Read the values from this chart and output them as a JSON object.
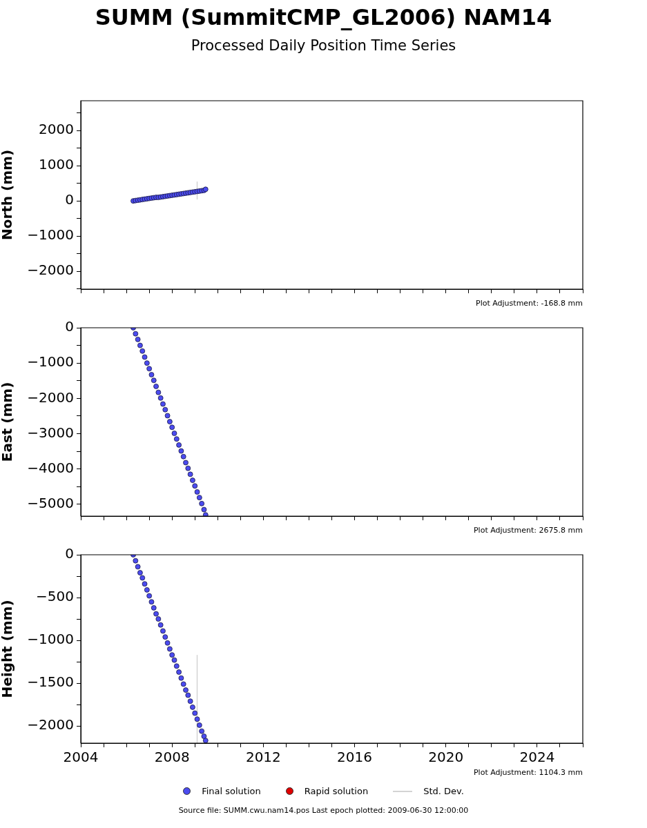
{
  "chart_data": [
    {
      "type": "scatter",
      "title": "SUMM (SummitCMP_GL2006) NAM14",
      "subtitle": "Processed Daily Position Time Series",
      "ylabel": "North (mm)",
      "xlim": [
        2004,
        2026
      ],
      "xticks": [
        {
          "value": 2004,
          "label": null
        },
        {
          "value": 2005,
          "label": null
        },
        {
          "value": 2006,
          "label": null
        },
        {
          "value": 2007,
          "label": null
        },
        {
          "value": 2008,
          "label": null
        },
        {
          "value": 2009,
          "label": null
        },
        {
          "value": 2010,
          "label": null
        },
        {
          "value": 2011,
          "label": null
        },
        {
          "value": 2012,
          "label": null
        },
        {
          "value": 2013,
          "label": null
        },
        {
          "value": 2014,
          "label": null
        },
        {
          "value": 2015,
          "label": null
        },
        {
          "value": 2016,
          "label": null
        },
        {
          "value": 2017,
          "label": null
        },
        {
          "value": 2018,
          "label": null
        },
        {
          "value": 2019,
          "label": null
        },
        {
          "value": 2020,
          "label": null
        },
        {
          "value": 2021,
          "label": null
        },
        {
          "value": 2022,
          "label": null
        },
        {
          "value": 2023,
          "label": null
        },
        {
          "value": 2024,
          "label": null
        },
        {
          "value": 2025,
          "label": null
        },
        {
          "value": 2026,
          "label": null
        }
      ],
      "ylim": [
        -2510,
        2850
      ],
      "yticks": [
        {
          "value": -2500,
          "label": null
        },
        {
          "value": -2000,
          "label": "−2000"
        },
        {
          "value": -1500,
          "label": null
        },
        {
          "value": -1000,
          "label": "−1000"
        },
        {
          "value": -500,
          "label": null
        },
        0,
        {
          "value": 500,
          "label": null
        },
        1000,
        {
          "value": 1500,
          "label": null
        },
        2000,
        {
          "value": 2500,
          "label": null
        }
      ],
      "tick_labels": "y",
      "marker": "circle",
      "x": [
        2006.3,
        2006.4,
        2006.5,
        2006.6,
        2006.7,
        2006.8,
        2006.9,
        2007.0,
        2007.1,
        2007.2,
        2007.3,
        2007.4,
        2007.5,
        2007.6,
        2007.7,
        2007.8,
        2007.9,
        2008.0,
        2008.1,
        2008.2,
        2008.3,
        2008.4,
        2008.5,
        2008.6,
        2008.7,
        2008.8,
        2008.9,
        2009.0,
        2009.1,
        2009.2,
        2009.3,
        2009.4,
        2009.47
      ],
      "series": [
        {
          "color": "#4b4bf0",
          "values": [
            0,
            10,
            20,
            30,
            40,
            50,
            60,
            70,
            80,
            90,
            100,
            100,
            110,
            120,
            130,
            140,
            150,
            160,
            170,
            180,
            190,
            200,
            210,
            220,
            230,
            240,
            250,
            260,
            270,
            280,
            290,
            300,
            330
          ],
          "errors": [
            null,
            null,
            null,
            null,
            null,
            null,
            null,
            null,
            null,
            null,
            null,
            null,
            null,
            null,
            null,
            null,
            null,
            null,
            null,
            null,
            null,
            null,
            null,
            null,
            null,
            null,
            null,
            null,
            [
              40,
              550
            ],
            null,
            null,
            null,
            null
          ]
        }
      ],
      "annotations": [
        "Plot Adjustment: -168.8 mm"
      ]
    },
    {
      "type": "scatter",
      "ylabel": "East (mm)",
      "xlim": [
        2004,
        2026
      ],
      "xticks": [
        {
          "value": 2004,
          "label": null
        },
        {
          "value": 2005,
          "label": null
        },
        {
          "value": 2006,
          "label": null
        },
        {
          "value": 2007,
          "label": null
        },
        {
          "value": 2008,
          "label": null
        },
        {
          "value": 2009,
          "label": null
        },
        {
          "value": 2010,
          "label": null
        },
        {
          "value": 2011,
          "label": null
        },
        {
          "value": 2012,
          "label": null
        },
        {
          "value": 2013,
          "label": null
        },
        {
          "value": 2014,
          "label": null
        },
        {
          "value": 2015,
          "label": null
        },
        {
          "value": 2016,
          "label": null
        },
        {
          "value": 2017,
          "label": null
        },
        {
          "value": 2018,
          "label": null
        },
        {
          "value": 2019,
          "label": null
        },
        {
          "value": 2020,
          "label": null
        },
        {
          "value": 2021,
          "label": null
        },
        {
          "value": 2022,
          "label": null
        },
        {
          "value": 2023,
          "label": null
        },
        {
          "value": 2024,
          "label": null
        },
        {
          "value": 2025,
          "label": null
        },
        {
          "value": 2026,
          "label": null
        }
      ],
      "ylim": [
        -5335,
        0
      ],
      "yticks": [
        {
          "value": -5000,
          "label": "−5000"
        },
        {
          "value": -4500,
          "label": null
        },
        {
          "value": -4000,
          "label": "−4000"
        },
        {
          "value": -3500,
          "label": null
        },
        {
          "value": -3000,
          "label": "−3000"
        },
        {
          "value": -2500,
          "label": null
        },
        {
          "value": -2000,
          "label": "−2000"
        },
        {
          "value": -1500,
          "label": null
        },
        {
          "value": -1000,
          "label": "−1000"
        },
        {
          "value": -500,
          "label": null
        },
        0
      ],
      "tick_labels": "y",
      "marker": "circle",
      "x": [
        2006.3,
        2006.4,
        2006.5,
        2006.6,
        2006.7,
        2006.8,
        2006.9,
        2007.0,
        2007.1,
        2007.2,
        2007.3,
        2007.4,
        2007.5,
        2007.6,
        2007.7,
        2007.8,
        2007.9,
        2008.0,
        2008.1,
        2008.2,
        2008.3,
        2008.4,
        2008.5,
        2008.6,
        2008.7,
        2008.8,
        2008.9,
        2009.0,
        2009.1,
        2009.2,
        2009.3,
        2009.4,
        2009.47
      ],
      "series": [
        {
          "color": "#4b4bf0",
          "values": [
            0,
            -170,
            -330,
            -500,
            -660,
            -830,
            -1000,
            -1160,
            -1330,
            -1490,
            -1660,
            -1830,
            -1990,
            -2160,
            -2320,
            -2490,
            -2660,
            -2820,
            -2990,
            -3150,
            -3320,
            -3490,
            -3650,
            -3820,
            -3980,
            -4150,
            -4320,
            -4480,
            -4650,
            -4810,
            -4980,
            -5150,
            -5300
          ]
        }
      ],
      "annotations": [
        "Plot Adjustment: 2675.8 mm"
      ]
    },
    {
      "type": "scatter",
      "ylabel": "Height (mm)",
      "xlim": [
        2004,
        2026
      ],
      "xticks": [
        2004,
        {
          "value": 2005,
          "label": null
        },
        {
          "value": 2006,
          "label": null
        },
        {
          "value": 2007,
          "label": null
        },
        2008,
        {
          "value": 2009,
          "label": null
        },
        {
          "value": 2010,
          "label": null
        },
        {
          "value": 2011,
          "label": null
        },
        2012,
        {
          "value": 2013,
          "label": null
        },
        {
          "value": 2014,
          "label": null
        },
        {
          "value": 2015,
          "label": null
        },
        2016,
        {
          "value": 2017,
          "label": null
        },
        {
          "value": 2018,
          "label": null
        },
        {
          "value": 2019,
          "label": null
        },
        2020,
        {
          "value": 2021,
          "label": null
        },
        {
          "value": 2022,
          "label": null
        },
        {
          "value": 2023,
          "label": null
        },
        2024,
        {
          "value": 2025,
          "label": null
        },
        {
          "value": 2026,
          "label": null
        }
      ],
      "ylim": [
        -2200,
        0
      ],
      "yticks": [
        {
          "value": -2000,
          "label": "−2000"
        },
        {
          "value": -1750,
          "label": null
        },
        {
          "value": -1500,
          "label": "−1500"
        },
        {
          "value": -1250,
          "label": null
        },
        {
          "value": -1000,
          "label": "−1000"
        },
        {
          "value": -750,
          "label": null
        },
        {
          "value": -500,
          "label": "−500"
        },
        {
          "value": -250,
          "label": null
        },
        0
      ],
      "marker": "circle",
      "legend": "bottom",
      "x": [
        2006.3,
        2006.4,
        2006.5,
        2006.6,
        2006.7,
        2006.8,
        2006.9,
        2007.0,
        2007.1,
        2007.2,
        2007.3,
        2007.4,
        2007.5,
        2007.6,
        2007.7,
        2007.8,
        2007.9,
        2008.0,
        2008.1,
        2008.2,
        2008.3,
        2008.4,
        2008.5,
        2008.6,
        2008.7,
        2008.8,
        2008.9,
        2009.0,
        2009.1,
        2009.2,
        2009.3,
        2009.4,
        2009.47
      ],
      "series": [
        {
          "name": "Final solution",
          "color": "#4b4bf0",
          "values": [
            0,
            -70,
            -140,
            -210,
            -270,
            -340,
            -410,
            -480,
            -550,
            -620,
            -690,
            -750,
            -820,
            -890,
            -960,
            -1030,
            -1100,
            -1170,
            -1230,
            -1300,
            -1370,
            -1440,
            -1510,
            -1580,
            -1640,
            -1710,
            -1780,
            -1850,
            -1920,
            -1990,
            -2060,
            -2120,
            -2170
          ],
          "errors": [
            null,
            null,
            null,
            null,
            null,
            null,
            null,
            null,
            null,
            null,
            null,
            null,
            null,
            null,
            null,
            null,
            null,
            null,
            null,
            null,
            null,
            null,
            null,
            null,
            null,
            null,
            null,
            null,
            [
              -2200,
              -1170
            ],
            null,
            null,
            null,
            null
          ]
        },
        {
          "name": "Rapid solution",
          "color": "#e00000",
          "values": [
            null,
            null,
            null,
            null,
            null,
            null,
            null,
            null,
            null,
            null,
            null,
            null,
            null,
            null,
            null,
            null,
            null,
            null,
            null,
            null,
            null,
            null,
            null,
            null,
            null,
            null,
            null,
            null,
            null,
            null,
            null,
            null,
            null
          ]
        },
        {
          "name": "Std. Dev.",
          "type": "line",
          "color": "#d3d3d3",
          "values": [
            null,
            null,
            null,
            null,
            null,
            null,
            null,
            null,
            null,
            null,
            null,
            null,
            null,
            null,
            null,
            null,
            null,
            null,
            null,
            null,
            null,
            null,
            null,
            null,
            null,
            null,
            null,
            null,
            null,
            null,
            null,
            null,
            null
          ]
        }
      ],
      "annotations": [
        "Plot Adjustment: 1104.3 mm",
        "Source file: SUMM.cwu.nam14.pos  Last epoch plotted: 2009-06-30 12:00:00"
      ]
    }
  ]
}
